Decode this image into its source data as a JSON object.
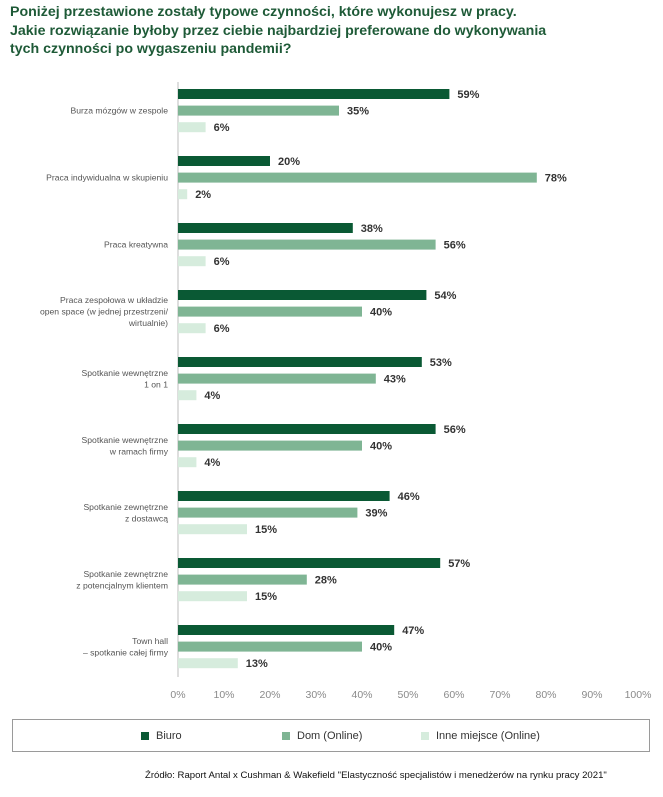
{
  "header": {
    "lines": [
      "Poniżej przestawione zostały typowe czynności, które wykonujesz w pracy.",
      "Jakie rozwiązanie byłoby przez ciebie najbardziej preferowane do wykonywania",
      "tych czynności po wygaszeniu pandemii?"
    ]
  },
  "chart_data": {
    "type": "bar",
    "orientation": "horizontal",
    "title": "Poniżej przestawione zostały typowe czynności, które wykonujesz w pracy. Jakie rozwiązanie byłoby przez ciebie najbardziej preferowane do wykonywania tych czynności po wygaszeniu pandemii?",
    "categories": [
      [
        "Burza mózgów w zespole"
      ],
      [
        "Praca indywidualna w skupieniu"
      ],
      [
        "Praca kreatywna"
      ],
      [
        "Praca zespołowa w układzie",
        "open space (w jednej przestrzeni/",
        "wirtualnie)"
      ],
      [
        "Spotkanie wewnętrzne",
        "1 on 1"
      ],
      [
        "Spotkanie wewnętrzne",
        "w ramach firmy"
      ],
      [
        "Spotkanie zewnętrzne",
        "z dostawcą"
      ],
      [
        "Spotkanie zewnętrzne",
        "z potencjalnym klientem"
      ],
      [
        "Town hall",
        "– spotkanie całej firmy"
      ]
    ],
    "series": [
      {
        "name": "Biuro",
        "color": "#0a5934",
        "values": [
          59,
          20,
          38,
          54,
          53,
          56,
          46,
          57,
          47
        ]
      },
      {
        "name": "Dom (Online)",
        "color": "#7fb594",
        "values": [
          35,
          78,
          56,
          40,
          43,
          40,
          39,
          28,
          40
        ]
      },
      {
        "name": "Inne miejsce (Online)",
        "color": "#d6ecdd",
        "values": [
          6,
          2,
          6,
          6,
          4,
          4,
          15,
          15,
          13
        ]
      }
    ],
    "value_suffix": "%",
    "xlim": [
      0,
      100
    ],
    "xticks": [
      "0%",
      "10%",
      "20%",
      "30%",
      "40%",
      "50%",
      "60%",
      "70%",
      "80%",
      "90%",
      "100%"
    ],
    "xlabel": "",
    "ylabel": "",
    "legend_position": "bottom"
  },
  "source": "Źródło: Raport Antal x Cushman & Wakefield \"Elastyczność specjalistów i menedżerów na rynku pracy 2021\""
}
